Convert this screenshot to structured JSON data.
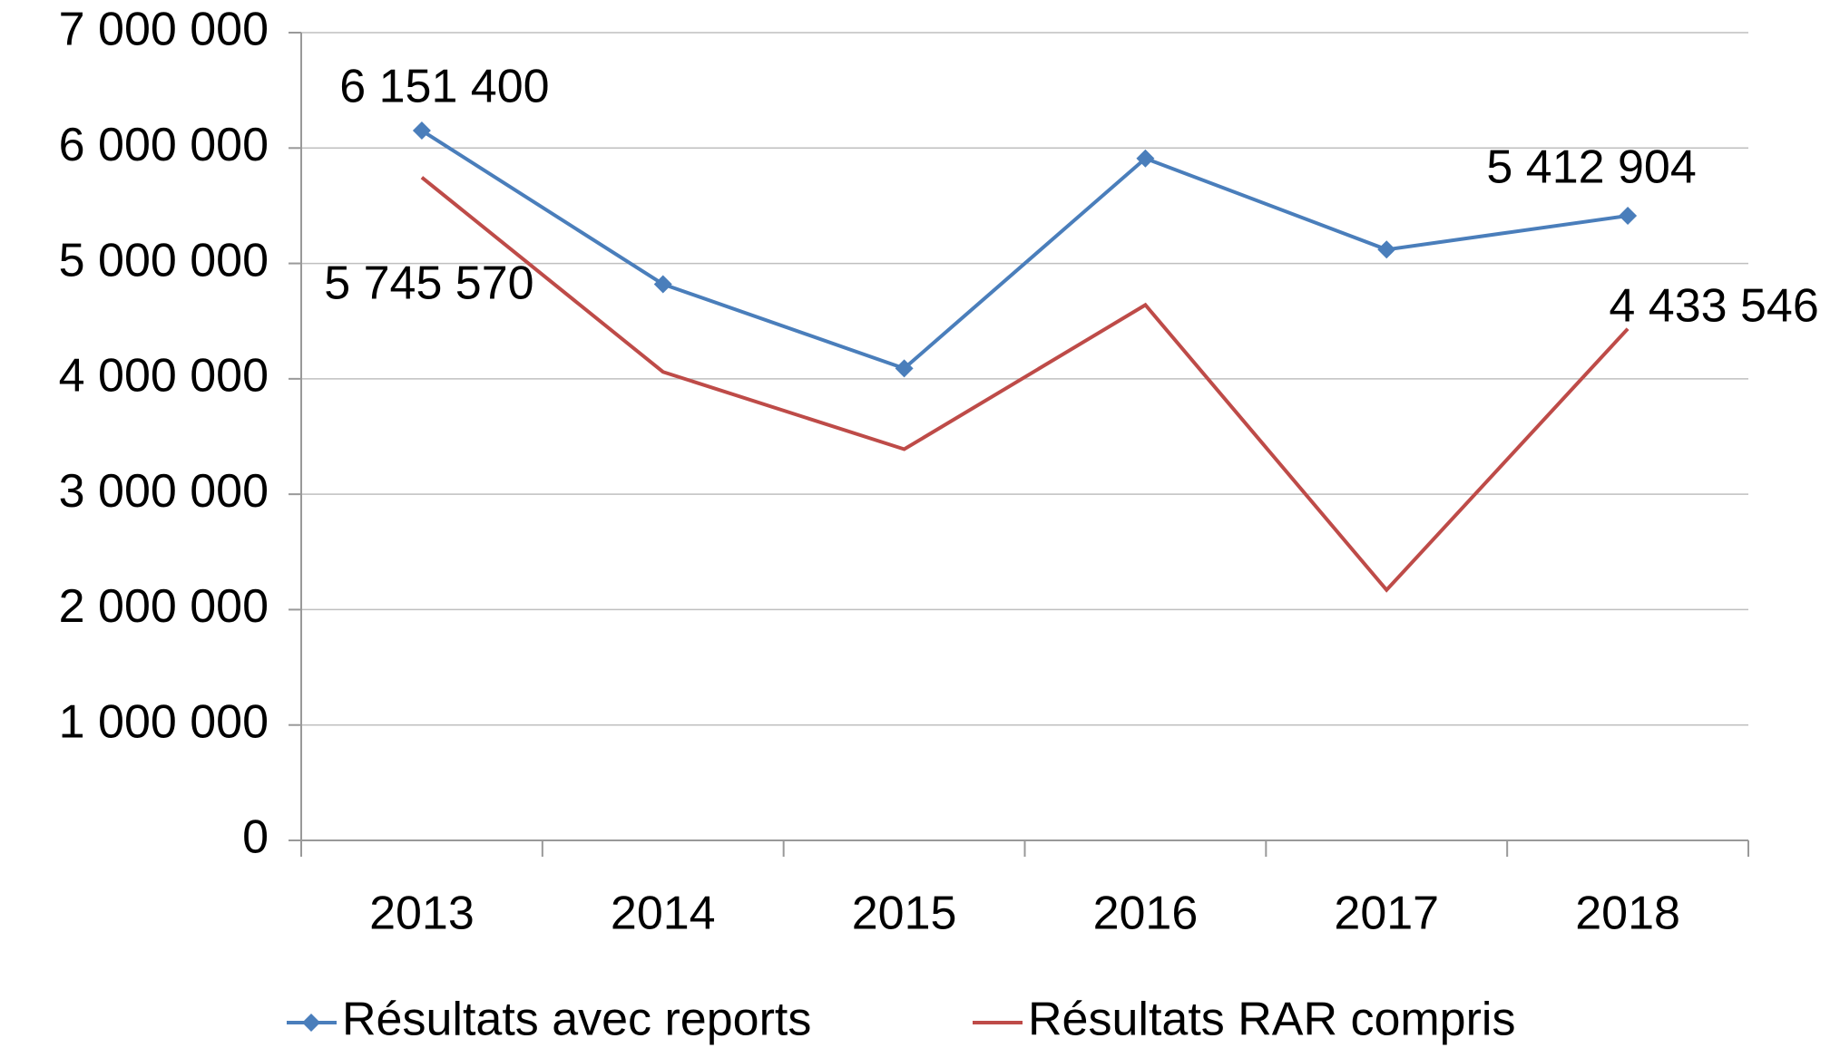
{
  "chart_data": {
    "type": "line",
    "categories": [
      "2013",
      "2014",
      "2015",
      "2016",
      "2017",
      "2018"
    ],
    "series": [
      {
        "name": "Résultats avec reports",
        "color": "#4a7ebb",
        "marker": "diamond",
        "values": [
          6151400,
          4820000,
          4090000,
          5910000,
          5120000,
          5412904
        ],
        "value_labels": [
          "6 151 400",
          null,
          null,
          null,
          null,
          "5 412 904"
        ]
      },
      {
        "name": "Résultats RAR compris",
        "color": "#be4b48",
        "values": [
          5745570,
          4060000,
          3390000,
          4640000,
          2170000,
          4433546
        ],
        "value_labels": [
          "5 745 570",
          null,
          null,
          null,
          null,
          "4 433 546"
        ]
      }
    ],
    "ylim": [
      0,
      7000000
    ],
    "yticks": [
      0,
      {
        "value": 1000000,
        "label": "1 000 000"
      },
      {
        "value": 2000000,
        "label": "2 000 000"
      },
      {
        "value": 3000000,
        "label": "3 000 000"
      },
      {
        "value": 4000000,
        "label": "4 000 000"
      },
      {
        "value": 5000000,
        "label": "5 000 000"
      },
      {
        "value": 6000000,
        "label": "6 000 000"
      },
      {
        "value": 7000000,
        "label": "7 000 000"
      }
    ],
    "grid": true,
    "legend": "bottom"
  }
}
